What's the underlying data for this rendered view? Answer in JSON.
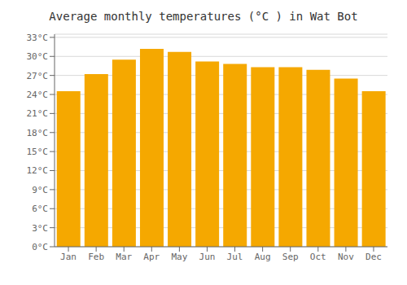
{
  "chart_data": {
    "type": "bar",
    "title": "Average monthly temperatures (°C ) in Wat Bot",
    "categories": [
      "Jan",
      "Feb",
      "Mar",
      "Apr",
      "May",
      "Jun",
      "Jul",
      "Aug",
      "Sep",
      "Oct",
      "Nov",
      "Dec"
    ],
    "values": [
      24.5,
      27.2,
      29.5,
      31.2,
      30.7,
      29.2,
      28.8,
      28.3,
      28.3,
      27.9,
      26.5,
      24.5
    ],
    "color": "#F5A800",
    "ylim": [
      0,
      33.5
    ],
    "yticks": [
      {
        "value": 0,
        "label": "0°C"
      },
      {
        "value": 3,
        "label": "3°C"
      },
      {
        "value": 6,
        "label": "6°C"
      },
      {
        "value": 9,
        "label": "9°C"
      },
      {
        "value": 12,
        "label": "12°C"
      },
      {
        "value": 15,
        "label": "15°C"
      },
      {
        "value": 18,
        "label": "18°C"
      },
      {
        "value": 21,
        "label": "21°C"
      },
      {
        "value": 24,
        "label": "24°C"
      },
      {
        "value": 27,
        "label": "27°C"
      },
      {
        "value": 30,
        "label": "30°C"
      },
      {
        "value": 33,
        "label": "33°C"
      }
    ],
    "grid": true
  }
}
